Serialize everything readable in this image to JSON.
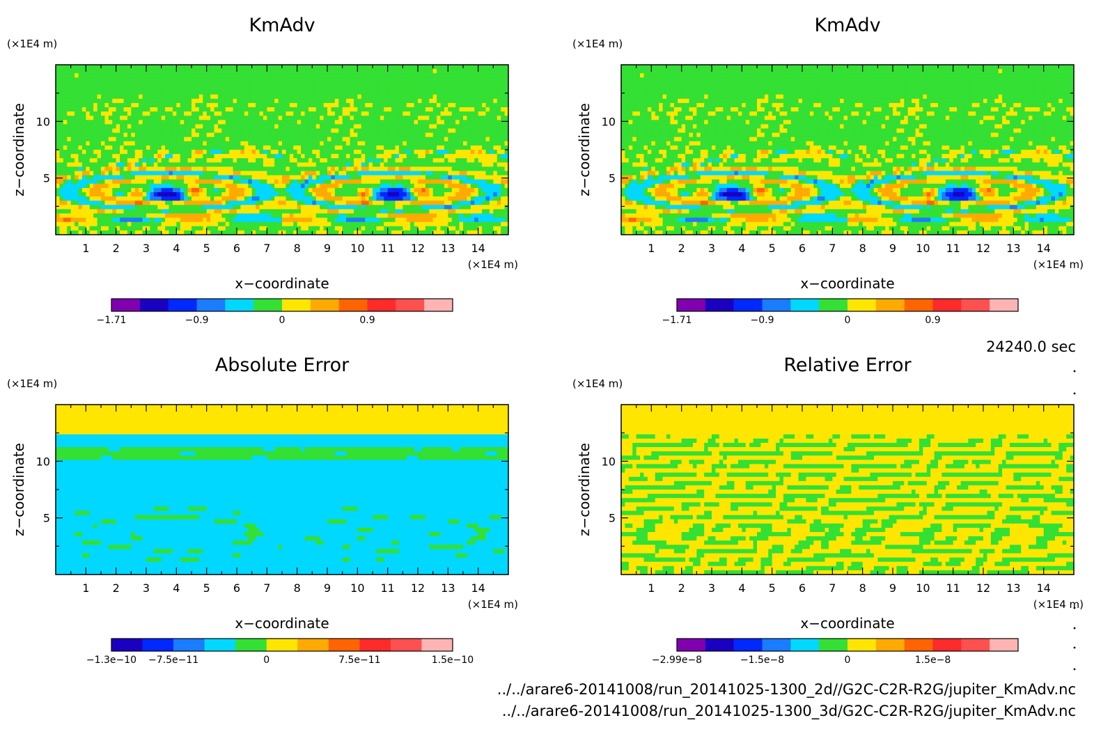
{
  "time_label": "24240.0 sec",
  "files": [
    "../../arare6-20141008/run_20141025-1300_2d//G2C-C2R-R2G/jupiter_KmAdv.nc",
    "../../arare6-20141008/run_20141025-1300_3d/G2C-C2R-R2G/jupiter_KmAdv.nc"
  ],
  "chart_data": [
    {
      "type": "heatmap",
      "title": "KmAdv",
      "xlabel": "x−coordinate",
      "ylabel": "z−coordinate",
      "x_unit": "(×1E4 m)",
      "y_unit": "(×1E4 m)",
      "xlim": [
        0,
        15
      ],
      "ylim": [
        0,
        15
      ],
      "xticks": [
        "1",
        "2",
        "3",
        "4",
        "5",
        "6",
        "7",
        "8",
        "9",
        "10",
        "11",
        "12",
        "13",
        "14"
      ],
      "yticks": [
        "5",
        "10"
      ],
      "pattern": "field",
      "colorbar": {
        "colors": [
          "#8000b0",
          "#1a00c0",
          "#0028ff",
          "#1a7cff",
          "#00d8ff",
          "#33e033",
          "#ffe600",
          "#ffaa00",
          "#ff6400",
          "#ff2a2a",
          "#ff5050",
          "#ffb4b4"
        ],
        "labels": [
          "−1.71",
          "−0.9",
          "0",
          "0.9"
        ],
        "label_positions": [
          0,
          3,
          6,
          9
        ]
      }
    },
    {
      "type": "heatmap",
      "title": "KmAdv",
      "xlabel": "x−coordinate",
      "ylabel": "z−coordinate",
      "x_unit": "(×1E4 m)",
      "y_unit": "(×1E4 m)",
      "xlim": [
        0,
        15
      ],
      "ylim": [
        0,
        15
      ],
      "xticks": [
        "1",
        "2",
        "3",
        "4",
        "5",
        "6",
        "7",
        "8",
        "9",
        "10",
        "11",
        "12",
        "13",
        "14"
      ],
      "yticks": [
        "5",
        "10"
      ],
      "pattern": "field",
      "colorbar": {
        "colors": [
          "#8000b0",
          "#1a00c0",
          "#0028ff",
          "#1a7cff",
          "#00d8ff",
          "#33e033",
          "#ffe600",
          "#ffaa00",
          "#ff6400",
          "#ff2a2a",
          "#ff5050",
          "#ffb4b4"
        ],
        "labels": [
          "−1.71",
          "−0.9",
          "0",
          "0.9"
        ],
        "label_positions": [
          0,
          3,
          6,
          9
        ]
      }
    },
    {
      "type": "heatmap",
      "title": "Absolute Error",
      "xlabel": "x−coordinate",
      "ylabel": "z−coordinate",
      "x_unit": "(×1E4 m)",
      "y_unit": "(×1E4 m)",
      "xlim": [
        0,
        15
      ],
      "ylim": [
        0,
        15
      ],
      "xticks": [
        "1",
        "2",
        "3",
        "4",
        "5",
        "6",
        "7",
        "8",
        "9",
        "10",
        "11",
        "12",
        "13",
        "14"
      ],
      "yticks": [
        "5",
        "10"
      ],
      "pattern": "abs",
      "colorbar": {
        "colors": [
          "#1a00c0",
          "#0028ff",
          "#1a7cff",
          "#00d8ff",
          "#33e033",
          "#ffe600",
          "#ffaa00",
          "#ff6400",
          "#ff2a2a",
          "#ff5050",
          "#ffb4b4"
        ],
        "labels": [
          "−1.3e−10",
          "−7.5e−11",
          "0",
          "7.5e−11",
          "1.5e−10"
        ],
        "label_positions": [
          0,
          2,
          5,
          8,
          11
        ]
      }
    },
    {
      "type": "heatmap",
      "title": "Relative Error",
      "xlabel": "x−coordinate",
      "ylabel": "z−coordinate",
      "x_unit": "(×1E4 m)",
      "y_unit": "(×1E4 m)",
      "xlim": [
        0,
        15
      ],
      "ylim": [
        0,
        15
      ],
      "xticks": [
        "1",
        "2",
        "3",
        "4",
        "5",
        "6",
        "7",
        "8",
        "9",
        "10",
        "11",
        "12",
        "13",
        "14"
      ],
      "yticks": [
        "5",
        "10"
      ],
      "pattern": "rel",
      "colorbar": {
        "colors": [
          "#8000b0",
          "#1a00c0",
          "#0028ff",
          "#1a7cff",
          "#00d8ff",
          "#33e033",
          "#ffe600",
          "#ffaa00",
          "#ff6400",
          "#ff2a2a",
          "#ff5050",
          "#ffb4b4"
        ],
        "labels": [
          "−2.99e−8",
          "−1.5e−8",
          "0",
          "1.5e−8"
        ],
        "label_positions": [
          0,
          3,
          6,
          9
        ]
      }
    }
  ]
}
